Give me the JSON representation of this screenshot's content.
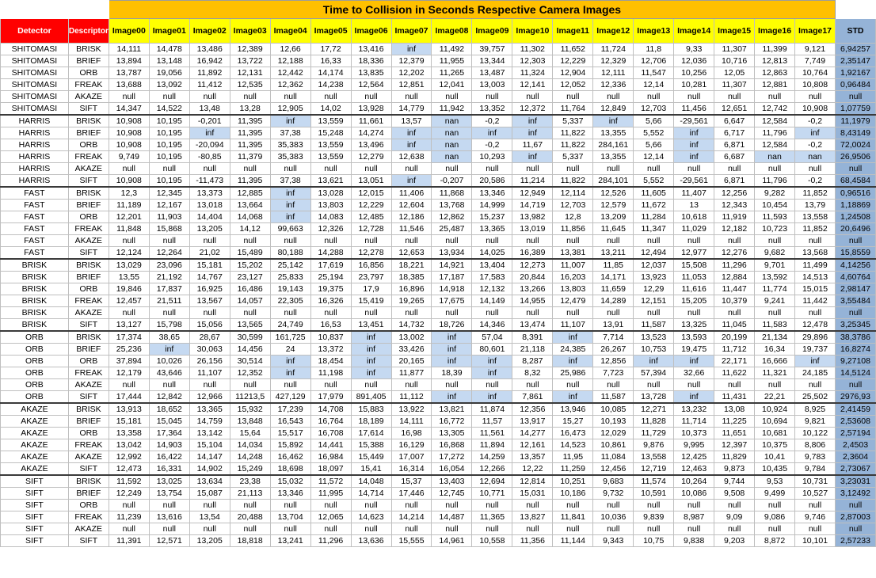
{
  "title": "Time to Collision in Seconds Respective Camera Images",
  "header": {
    "detector": "Detector",
    "descriptor": "Descriptor",
    "images": [
      "Image00",
      "Image01",
      "Image02",
      "Image03",
      "Image04",
      "Image05",
      "Image06",
      "Image07",
      "Image08",
      "Image09",
      "Image10",
      "Image11",
      "Image12",
      "Image13",
      "Image14",
      "Image15",
      "Image16",
      "Image17"
    ],
    "std": "STD"
  },
  "colors": {
    "title_bg": "#ffc000",
    "header_left_bg": "#ff0000",
    "header_img_bg": "#ffff00",
    "std_bg": "#95b3d7",
    "highlight_bg": "#c5d9f1"
  },
  "rows": [
    {
      "detector": "SHITOMASI",
      "descriptor": "BRISK",
      "values": [
        "14,111",
        "14,478",
        "13,486",
        "12,389",
        "12,66",
        "17,72",
        "13,416",
        "inf",
        "11,492",
        "39,757",
        "11,302",
        "11,652",
        "11,724",
        "11,8",
        "9,33",
        "11,307",
        "11,399",
        "9,121"
      ],
      "std": "6,94257"
    },
    {
      "detector": "SHITOMASI",
      "descriptor": "BRIEF",
      "values": [
        "13,894",
        "13,148",
        "16,942",
        "13,722",
        "12,188",
        "16,33",
        "18,336",
        "12,379",
        "11,955",
        "13,344",
        "12,303",
        "12,229",
        "12,329",
        "12,706",
        "12,036",
        "10,716",
        "12,813",
        "7,749"
      ],
      "std": "2,35147"
    },
    {
      "detector": "SHITOMASI",
      "descriptor": "ORB",
      "values": [
        "13,787",
        "19,056",
        "11,892",
        "12,131",
        "12,442",
        "14,174",
        "13,835",
        "12,202",
        "11,265",
        "13,487",
        "11,324",
        "12,904",
        "12,111",
        "11,547",
        "10,256",
        "12,05",
        "12,863",
        "10,764"
      ],
      "std": "1,92167"
    },
    {
      "detector": "SHITOMASI",
      "descriptor": "FREAK",
      "values": [
        "13,688",
        "13,092",
        "11,412",
        "12,535",
        "12,362",
        "14,238",
        "12,564",
        "12,851",
        "12,041",
        "13,003",
        "12,141",
        "12,052",
        "12,336",
        "12,14",
        "10,281",
        "11,307",
        "12,881",
        "10,808"
      ],
      "std": "0,96484"
    },
    {
      "detector": "SHITOMASI",
      "descriptor": "AKAZE",
      "values": [
        "null",
        "null",
        "null",
        "null",
        "null",
        "null",
        "null",
        "null",
        "null",
        "null",
        "null",
        "null",
        "null",
        "null",
        "null",
        "null",
        "null",
        "null"
      ],
      "std": "null"
    },
    {
      "detector": "SHITOMASI",
      "descriptor": "SIFT",
      "values": [
        "14,347",
        "14,522",
        "13,48",
        "13,28",
        "12,905",
        "14,02",
        "13,928",
        "14,779",
        "11,942",
        "13,352",
        "12,372",
        "11,764",
        "12,849",
        "12,703",
        "11,456",
        "12,651",
        "12,742",
        "10,908"
      ],
      "std": "1,07759"
    },
    {
      "detector": "HARRIS",
      "descriptor": "BRISK",
      "values": [
        "10,908",
        "10,195",
        "-0,201",
        "11,395",
        "inf",
        "13,559",
        "11,661",
        "13,57",
        "nan",
        "-0,2",
        "inf",
        "5,337",
        "inf",
        "5,66",
        "-29,561",
        "6,647",
        "12,584",
        "-0,2"
      ],
      "std": "11,1979"
    },
    {
      "detector": "HARRIS",
      "descriptor": "BRIEF",
      "values": [
        "10,908",
        "10,195",
        "inf",
        "11,395",
        "37,38",
        "15,248",
        "14,274",
        "inf",
        "nan",
        "inf",
        "inf",
        "11,822",
        "13,355",
        "5,552",
        "inf",
        "6,717",
        "11,796",
        "inf"
      ],
      "std": "8,43149"
    },
    {
      "detector": "HARRIS",
      "descriptor": "ORB",
      "values": [
        "10,908",
        "10,195",
        "-20,094",
        "11,395",
        "35,383",
        "13,559",
        "13,496",
        "inf",
        "nan",
        "-0,2",
        "11,67",
        "11,822",
        "284,161",
        "5,66",
        "inf",
        "6,871",
        "12,584",
        "-0,2"
      ],
      "std": "72,0024"
    },
    {
      "detector": "HARRIS",
      "descriptor": "FREAK",
      "values": [
        "9,749",
        "10,195",
        "-80,85",
        "11,379",
        "35,383",
        "13,559",
        "12,279",
        "12,638",
        "nan",
        "10,293",
        "inf",
        "5,337",
        "13,355",
        "12,14",
        "inf",
        "6,687",
        "nan",
        "nan"
      ],
      "std": "26,9506"
    },
    {
      "detector": "HARRIS",
      "descriptor": "AKAZE",
      "values": [
        "null",
        "null",
        "null",
        "null",
        "null",
        "null",
        "null",
        "null",
        "null",
        "null",
        "null",
        "null",
        "null",
        "null",
        "null",
        "null",
        "null",
        "null"
      ],
      "std": "null"
    },
    {
      "detector": "HARRIS",
      "descriptor": "SIFT",
      "values": [
        "10,908",
        "10,195",
        "-11,473",
        "11,395",
        "37,38",
        "13,621",
        "13,051",
        "inf",
        "-0,207",
        "20,586",
        "11,214",
        "11,822",
        "284,101",
        "5,552",
        "-29,561",
        "6,871",
        "11,796",
        "-0,2"
      ],
      "std": "68,4584"
    },
    {
      "detector": "FAST",
      "descriptor": "BRISK",
      "values": [
        "12,3",
        "12,345",
        "13,373",
        "12,885",
        "inf",
        "13,028",
        "12,015",
        "11,406",
        "11,868",
        "13,346",
        "12,949",
        "12,114",
        "12,526",
        "11,605",
        "11,407",
        "12,256",
        "9,282",
        "11,852"
      ],
      "std": "0,96516"
    },
    {
      "detector": "FAST",
      "descriptor": "BRIEF",
      "values": [
        "11,189",
        "12,167",
        "13,018",
        "13,664",
        "inf",
        "13,803",
        "12,229",
        "12,604",
        "13,768",
        "14,999",
        "14,719",
        "12,703",
        "12,579",
        "11,672",
        "13",
        "12,343",
        "10,454",
        "13,79"
      ],
      "std": "1,18869"
    },
    {
      "detector": "FAST",
      "descriptor": "ORB",
      "values": [
        "12,201",
        "11,903",
        "14,404",
        "14,068",
        "inf",
        "14,083",
        "12,485",
        "12,186",
        "12,862",
        "15,237",
        "13,982",
        "12,8",
        "13,209",
        "11,284",
        "10,618",
        "11,919",
        "11,593",
        "13,558"
      ],
      "std": "1,24508"
    },
    {
      "detector": "FAST",
      "descriptor": "FREAK",
      "values": [
        "11,848",
        "15,868",
        "13,205",
        "14,12",
        "99,663",
        "12,326",
        "12,728",
        "11,546",
        "25,487",
        "13,365",
        "13,019",
        "11,856",
        "11,645",
        "11,347",
        "11,029",
        "12,182",
        "10,723",
        "11,852"
      ],
      "std": "20,6496"
    },
    {
      "detector": "FAST",
      "descriptor": "AKAZE",
      "values": [
        "null",
        "null",
        "null",
        "null",
        "null",
        "null",
        "null",
        "null",
        "null",
        "null",
        "null",
        "null",
        "null",
        "null",
        "null",
        "null",
        "null",
        "null"
      ],
      "std": "null"
    },
    {
      "detector": "FAST",
      "descriptor": "SIFT",
      "values": [
        "12,124",
        "12,264",
        "21,02",
        "15,489",
        "80,188",
        "14,288",
        "12,278",
        "12,653",
        "13,934",
        "14,025",
        "16,389",
        "13,381",
        "13,211",
        "12,494",
        "12,977",
        "12,276",
        "9,682",
        "13,568"
      ],
      "std": "15,8559"
    },
    {
      "detector": "BRISK",
      "descriptor": "BRISK",
      "values": [
        "13,029",
        "23,096",
        "15,181",
        "15,202",
        "25,142",
        "17,619",
        "16,856",
        "18,221",
        "14,921",
        "13,404",
        "12,273",
        "11,007",
        "11,85",
        "12,037",
        "15,508",
        "11,296",
        "9,701",
        "11,499"
      ],
      "std": "4,14256"
    },
    {
      "detector": "BRISK",
      "descriptor": "BRIEF",
      "values": [
        "13,55",
        "21,192",
        "14,767",
        "23,127",
        "25,833",
        "25,194",
        "23,797",
        "18,385",
        "17,187",
        "17,583",
        "20,844",
        "16,203",
        "14,171",
        "13,923",
        "11,053",
        "12,884",
        "13,592",
        "14,513"
      ],
      "std": "4,60764"
    },
    {
      "detector": "BRISK",
      "descriptor": "ORB",
      "values": [
        "19,846",
        "17,837",
        "16,925",
        "16,486",
        "19,143",
        "19,375",
        "17,9",
        "16,896",
        "14,918",
        "12,132",
        "13,266",
        "13,803",
        "11,659",
        "12,29",
        "11,616",
        "11,447",
        "11,774",
        "15,015"
      ],
      "std": "2,98147"
    },
    {
      "detector": "BRISK",
      "descriptor": "FREAK",
      "values": [
        "12,457",
        "21,511",
        "13,567",
        "14,057",
        "22,305",
        "16,326",
        "15,419",
        "19,265",
        "17,675",
        "14,149",
        "14,955",
        "12,479",
        "14,289",
        "12,151",
        "15,205",
        "10,379",
        "9,241",
        "11,442"
      ],
      "std": "3,55484"
    },
    {
      "detector": "BRISK",
      "descriptor": "AKAZE",
      "values": [
        "null",
        "null",
        "null",
        "null",
        "null",
        "null",
        "null",
        "null",
        "null",
        "null",
        "null",
        "null",
        "null",
        "null",
        "null",
        "null",
        "null",
        "null"
      ],
      "std": "null"
    },
    {
      "detector": "BRISK",
      "descriptor": "SIFT",
      "values": [
        "13,127",
        "15,798",
        "15,056",
        "13,565",
        "24,749",
        "16,53",
        "13,451",
        "14,732",
        "18,726",
        "14,346",
        "13,474",
        "11,107",
        "13,91",
        "11,587",
        "13,325",
        "11,045",
        "11,583",
        "12,478"
      ],
      "std": "3,25345"
    },
    {
      "detector": "ORB",
      "descriptor": "BRISK",
      "values": [
        "17,374",
        "38,65",
        "28,67",
        "30,599",
        "161,725",
        "10,837",
        "inf",
        "13,002",
        "inf",
        "57,04",
        "8,391",
        "inf",
        "7,714",
        "13,523",
        "13,593",
        "20,199",
        "21,134",
        "29,896"
      ],
      "std": "38,3786"
    },
    {
      "detector": "ORB",
      "descriptor": "BRIEF",
      "values": [
        "25,236",
        "inf",
        "30,063",
        "14,456",
        "24",
        "13,372",
        "inf",
        "33,426",
        "inf",
        "80,601",
        "21,118",
        "24,385",
        "26,267",
        "10,753",
        "19,475",
        "11,712",
        "16,34",
        "19,737"
      ],
      "std": "16,8274"
    },
    {
      "detector": "ORB",
      "descriptor": "ORB",
      "values": [
        "37,894",
        "10,026",
        "26,156",
        "30,514",
        "inf",
        "18,454",
        "inf",
        "20,165",
        "inf",
        "inf",
        "8,287",
        "inf",
        "12,856",
        "inf",
        "inf",
        "22,171",
        "16,666",
        "inf"
      ],
      "std": "9,27108"
    },
    {
      "detector": "ORB",
      "descriptor": "FREAK",
      "values": [
        "12,179",
        "43,646",
        "11,107",
        "12,352",
        "inf",
        "11,198",
        "inf",
        "11,877",
        "18,39",
        "inf",
        "8,32",
        "25,986",
        "7,723",
        "57,394",
        "32,66",
        "11,622",
        "11,321",
        "24,185"
      ],
      "std": "14,5124"
    },
    {
      "detector": "ORB",
      "descriptor": "AKAZE",
      "values": [
        "null",
        "null",
        "null",
        "null",
        "null",
        "null",
        "null",
        "null",
        "null",
        "null",
        "null",
        "null",
        "null",
        "null",
        "null",
        "null",
        "null",
        "null"
      ],
      "std": "null"
    },
    {
      "detector": "ORB",
      "descriptor": "SIFT",
      "values": [
        "17,444",
        "12,842",
        "12,966",
        "11213,5",
        "427,129",
        "17,979",
        "891,405",
        "11,112",
        "inf",
        "inf",
        "7,861",
        "inf",
        "11,587",
        "13,728",
        "inf",
        "11,431",
        "22,21",
        "25,502"
      ],
      "std": "2976,93"
    },
    {
      "detector": "AKAZE",
      "descriptor": "BRISK",
      "values": [
        "13,913",
        "18,652",
        "13,365",
        "15,932",
        "17,239",
        "14,708",
        "15,883",
        "13,922",
        "13,821",
        "11,874",
        "12,356",
        "13,946",
        "10,085",
        "12,271",
        "13,232",
        "13,08",
        "10,924",
        "8,925"
      ],
      "std": "2,41459"
    },
    {
      "detector": "AKAZE",
      "descriptor": "BRIEF",
      "values": [
        "15,181",
        "15,045",
        "14,759",
        "13,848",
        "16,543",
        "16,764",
        "18,189",
        "14,111",
        "16,772",
        "11,57",
        "13,917",
        "15,27",
        "10,193",
        "11,828",
        "11,714",
        "11,225",
        "10,694",
        "9,821"
      ],
      "std": "2,53608"
    },
    {
      "detector": "AKAZE",
      "descriptor": "ORB",
      "values": [
        "13,358",
        "17,364",
        "13,142",
        "15,64",
        "15,517",
        "16,708",
        "17,614",
        "16,98",
        "13,305",
        "11,561",
        "14,277",
        "16,473",
        "12,029",
        "11,729",
        "10,373",
        "11,651",
        "10,681",
        "10,122"
      ],
      "std": "2,57194"
    },
    {
      "detector": "AKAZE",
      "descriptor": "FREAK",
      "values": [
        "13,042",
        "14,903",
        "15,104",
        "14,034",
        "15,892",
        "14,441",
        "15,388",
        "16,129",
        "16,868",
        "11,894",
        "12,161",
        "14,523",
        "10,861",
        "9,876",
        "9,995",
        "12,397",
        "10,375",
        "8,806"
      ],
      "std": "2,4503"
    },
    {
      "detector": "AKAZE",
      "descriptor": "AKAZE",
      "values": [
        "12,992",
        "16,422",
        "14,147",
        "14,248",
        "16,462",
        "16,984",
        "15,449",
        "17,007",
        "17,272",
        "14,259",
        "13,357",
        "11,95",
        "11,084",
        "13,558",
        "12,425",
        "11,829",
        "10,41",
        "9,783"
      ],
      "std": "2,3604"
    },
    {
      "detector": "AKAZE",
      "descriptor": "SIFT",
      "values": [
        "12,473",
        "16,331",
        "14,902",
        "15,249",
        "18,698",
        "18,097",
        "15,41",
        "16,314",
        "16,054",
        "12,266",
        "12,22",
        "11,259",
        "12,456",
        "12,719",
        "12,463",
        "9,873",
        "10,435",
        "9,784"
      ],
      "std": "2,73067"
    },
    {
      "detector": "SIFT",
      "descriptor": "BRISK",
      "values": [
        "11,592",
        "13,025",
        "13,634",
        "23,38",
        "15,032",
        "11,572",
        "14,048",
        "15,37",
        "13,403",
        "12,694",
        "12,814",
        "10,251",
        "9,683",
        "11,574",
        "10,264",
        "9,744",
        "9,53",
        "10,731"
      ],
      "std": "3,23031"
    },
    {
      "detector": "SIFT",
      "descriptor": "BRIEF",
      "values": [
        "12,249",
        "13,754",
        "15,087",
        "21,113",
        "13,346",
        "11,995",
        "14,714",
        "17,446",
        "12,745",
        "10,771",
        "15,031",
        "10,186",
        "9,732",
        "10,591",
        "10,086",
        "9,508",
        "9,499",
        "10,527"
      ],
      "std": "3,12492"
    },
    {
      "detector": "SIFT",
      "descriptor": "ORB",
      "values": [
        "null",
        "null",
        "null",
        "null",
        "null",
        "null",
        "null",
        "null",
        "null",
        "null",
        "null",
        "null",
        "null",
        "null",
        "null",
        "null",
        "null",
        "null"
      ],
      "std": "null"
    },
    {
      "detector": "SIFT",
      "descriptor": "FREAK",
      "values": [
        "11,239",
        "13,616",
        "13,54",
        "20,488",
        "13,704",
        "12,065",
        "14,623",
        "14,214",
        "14,487",
        "11,365",
        "13,827",
        "11,841",
        "10,036",
        "9,839",
        "8,987",
        "9,09",
        "9,086",
        "9,746"
      ],
      "std": "2,87003"
    },
    {
      "detector": "SIFT",
      "descriptor": "AKAZE",
      "values": [
        "null",
        "null",
        "null",
        "null",
        "null",
        "null",
        "null",
        "null",
        "null",
        "null",
        "null",
        "null",
        "null",
        "null",
        "null",
        "null",
        "null",
        "null"
      ],
      "std": "null"
    },
    {
      "detector": "SIFT",
      "descriptor": "SIFT",
      "values": [
        "11,391",
        "12,571",
        "13,205",
        "18,818",
        "13,241",
        "11,296",
        "13,636",
        "15,555",
        "14,961",
        "10,558",
        "11,356",
        "11,144",
        "9,343",
        "10,75",
        "9,838",
        "9,203",
        "8,872",
        "10,101"
      ],
      "std": "2,57233"
    }
  ]
}
